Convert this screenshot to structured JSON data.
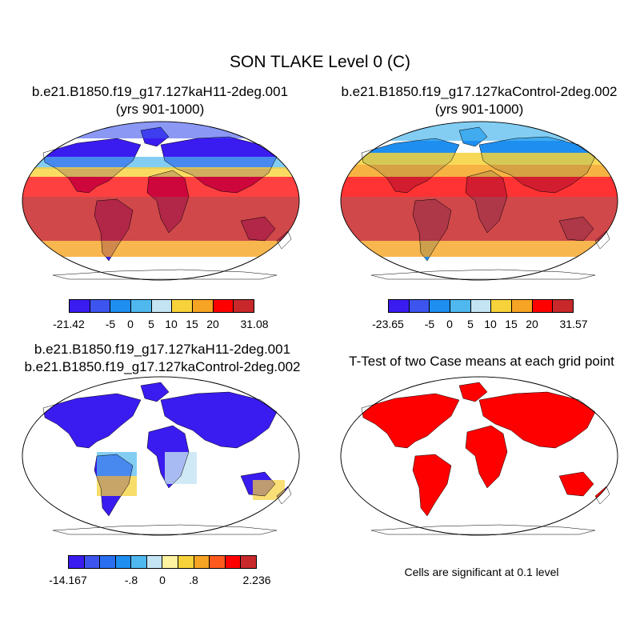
{
  "title": "SON TLAKE Level 0 (C)",
  "panels": {
    "case1": {
      "line1": "b.e21.B1850.f19_g17.127kaH11-2deg.001",
      "line2": "(yrs 901-1000)",
      "map_icon": "world-map-robinson-icon",
      "colorbar": {
        "colors": [
          "#3a1cf0",
          "#3d55ee",
          "#1e8ef0",
          "#4fb8ee",
          "#c4e4f4",
          "#f7d23a",
          "#f6a423",
          "#ff0000",
          "#c8282a"
        ],
        "labels": [
          "-21.42",
          "-5",
          "0",
          "5",
          "10",
          "15",
          "20",
          "31.08"
        ]
      }
    },
    "case2": {
      "line1": "b.e21.B1850.f19_g17.127kaControl-2deg.002",
      "line2": "(yrs 901-1000)",
      "map_icon": "world-map-robinson-icon",
      "colorbar": {
        "colors": [
          "#3a1cf0",
          "#3d55ee",
          "#1e8ef0",
          "#4fb8ee",
          "#c4e4f4",
          "#f7d23a",
          "#f6a423",
          "#ff0000",
          "#c8282a"
        ],
        "labels": [
          "-23.65",
          "-5",
          "0",
          "5",
          "10",
          "15",
          "20",
          "31.57"
        ]
      }
    },
    "diff": {
      "line1": "b.e21.B1850.f19_g17.127kaH11-2deg.001",
      "line2": "b.e21.B1850.f19_g17.127kaControl-2deg.002",
      "map_icon": "world-map-robinson-icon",
      "colorbar": {
        "colors": [
          "#3a1cf0",
          "#3d55ee",
          "#2a6ff0",
          "#1e8ef0",
          "#4fb8ee",
          "#c4e4f4",
          "#fff2a0",
          "#f7d23a",
          "#f6a423",
          "#ff5a1e",
          "#ff0000",
          "#c8282a"
        ],
        "labels": [
          "-14.167",
          "-.8",
          "0",
          ".8",
          "2.236"
        ]
      }
    },
    "ttest": {
      "title": "T-Test of two Case means at each grid point",
      "map_icon": "world-map-robinson-icon",
      "note": "Cells are significant at 0.1 level",
      "color": "#ff0000"
    }
  }
}
